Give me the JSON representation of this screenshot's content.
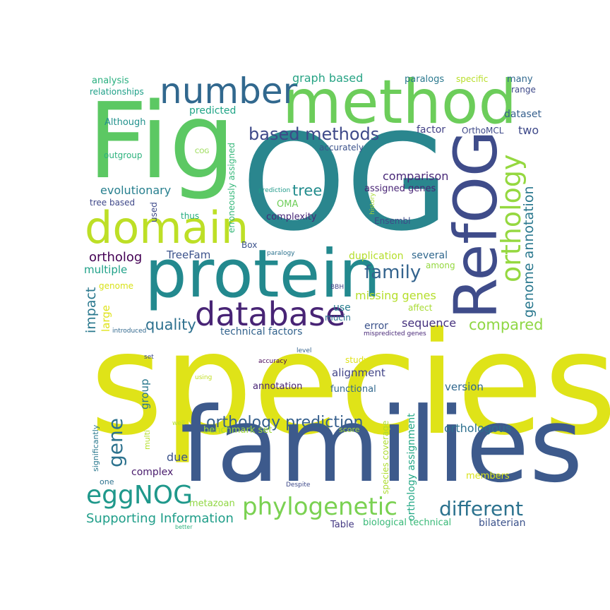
{
  "words": [
    {
      "text": "species",
      "color": "#dfe318"
    },
    {
      "text": "OG",
      "color": "#2a868e"
    },
    {
      "text": "families",
      "color": "#3d5a8c"
    },
    {
      "text": "Fig",
      "color": "#5cc863"
    },
    {
      "text": "protein",
      "color": "#23898e"
    },
    {
      "text": "method",
      "color": "#6ccd5a"
    },
    {
      "text": "RefOG",
      "color": "#3f4c8a"
    },
    {
      "text": "domain",
      "color": "#bddf26"
    },
    {
      "text": "number",
      "color": "#31688e"
    },
    {
      "text": "database",
      "color": "#482475"
    },
    {
      "text": "orthology",
      "color": "#95d840"
    },
    {
      "text": "phylogenetic",
      "color": "#7ad151"
    },
    {
      "text": "eggNOG",
      "color": "#1f988b"
    },
    {
      "text": "based methods",
      "color": "#3e4989"
    },
    {
      "text": "gene",
      "color": "#2c728e"
    },
    {
      "text": "family",
      "color": "#33638d"
    },
    {
      "text": "genome annotation",
      "color": "#2a788e"
    },
    {
      "text": "different",
      "color": "#2c728e"
    },
    {
      "text": "orthology prediction",
      "color": "#355f8d"
    },
    {
      "text": "compared",
      "color": "#8fd744"
    },
    {
      "text": "quality",
      "color": "#2d708e"
    },
    {
      "text": "Supporting Information",
      "color": "#1f9e89"
    },
    {
      "text": "tree",
      "color": "#228c8d"
    },
    {
      "text": "comparison",
      "color": "#482878"
    },
    {
      "text": "orthologous",
      "color": "#2d708e"
    },
    {
      "text": "missing genes",
      "color": "#b5de2b"
    },
    {
      "text": "impact",
      "color": "#2a788e"
    },
    {
      "text": "sequence",
      "color": "#46327e"
    },
    {
      "text": "ortholog",
      "color": "#440154"
    },
    {
      "text": "evolutionary",
      "color": "#277f8e"
    },
    {
      "text": "graph based",
      "color": "#26a384"
    },
    {
      "text": "predicted",
      "color": "#20a486"
    },
    {
      "text": "due",
      "color": "#3b528b"
    },
    {
      "text": "multiple",
      "color": "#1fa188"
    },
    {
      "text": "TreeFam",
      "color": "#3b528b"
    },
    {
      "text": "version",
      "color": "#31688e"
    },
    {
      "text": "alignment",
      "color": "#414487"
    },
    {
      "text": "two",
      "color": "#3e4989"
    },
    {
      "text": "factor",
      "color": "#424086"
    },
    {
      "text": "dataset",
      "color": "#355f8d"
    },
    {
      "text": "duplication",
      "color": "#b5de2b"
    },
    {
      "text": "several",
      "color": "#31688e"
    },
    {
      "text": "bilaterian",
      "color": "#3b528b"
    },
    {
      "text": "group",
      "color": "#2a788e"
    },
    {
      "text": "orthology assignment",
      "color": "#22a785"
    },
    {
      "text": "species coverage",
      "color": "#addc30"
    },
    {
      "text": "assigned genes",
      "color": "#482475"
    },
    {
      "text": "error",
      "color": "#3b528b"
    },
    {
      "text": "use",
      "color": "#287d8e"
    },
    {
      "text": "large",
      "color": "#dfe318"
    },
    {
      "text": "complex",
      "color": "#481a6c"
    },
    {
      "text": "technical factors",
      "color": "#33638d"
    },
    {
      "text": "benchmark set",
      "color": "#a0da39"
    },
    {
      "text": "annotation",
      "color": "#482475"
    },
    {
      "text": "functional",
      "color": "#31688e"
    },
    {
      "text": "biological technical",
      "color": "#38b977"
    },
    {
      "text": "Table",
      "color": "#443983"
    },
    {
      "text": "members",
      "color": "#d8e219"
    },
    {
      "text": "metazoan",
      "color": "#90d743"
    },
    {
      "text": "complexity",
      "color": "#482878"
    },
    {
      "text": "OMA",
      "color": "#6ece58"
    },
    {
      "text": "Ensembl",
      "color": "#3e4a89"
    },
    {
      "text": "accurately",
      "color": "#3b528b"
    },
    {
      "text": "analysis",
      "color": "#29af7f"
    },
    {
      "text": "relationships",
      "color": "#1fa088"
    },
    {
      "text": "paralogs",
      "color": "#2a788e"
    },
    {
      "text": "specific",
      "color": "#b8de29"
    },
    {
      "text": "many",
      "color": "#31688e"
    },
    {
      "text": "range",
      "color": "#3e4989"
    },
    {
      "text": "OrthoMCL",
      "color": "#3e4989"
    },
    {
      "text": "Although",
      "color": "#21918c"
    },
    {
      "text": "outgroup",
      "color": "#2db27d"
    },
    {
      "text": "COG",
      "color": "#8fd744"
    },
    {
      "text": "erroneously assigned",
      "color": "#35b779"
    },
    {
      "text": "tree based",
      "color": "#3f4889"
    },
    {
      "text": "used",
      "color": "#3e4989"
    },
    {
      "text": "thus",
      "color": "#27ad81"
    },
    {
      "text": "prediction",
      "color": "#1f9a8a"
    },
    {
      "text": "history",
      "color": "#a8db34"
    },
    {
      "text": "Box",
      "color": "#3b528b"
    },
    {
      "text": "paralogy",
      "color": "#2c728e"
    },
    {
      "text": "among",
      "color": "#95d840"
    },
    {
      "text": "genome",
      "color": "#d8e219"
    },
    {
      "text": "BBH",
      "color": "#414487"
    },
    {
      "text": "affect",
      "color": "#a8db34"
    },
    {
      "text": "mucin",
      "color": "#2a768e"
    },
    {
      "text": "introduced",
      "color": "#31688e"
    },
    {
      "text": "mispredicted genes",
      "color": "#482878"
    },
    {
      "text": "level",
      "color": "#33638d"
    },
    {
      "text": "set",
      "color": "#3e4989"
    },
    {
      "text": "accuracy",
      "color": "#440154"
    },
    {
      "text": "study",
      "color": "#dfe318"
    },
    {
      "text": "using",
      "color": "#c2df23"
    },
    {
      "text": "significantly",
      "color": "#2a788e"
    },
    {
      "text": "multi",
      "color": "#b5de2b"
    },
    {
      "text": "well",
      "color": "#b5de2b"
    },
    {
      "text": "score",
      "color": "#a5db36"
    },
    {
      "text": "one",
      "color": "#2c728e"
    },
    {
      "text": "Despite",
      "color": "#3e4989"
    },
    {
      "text": "better",
      "color": "#2db27d"
    }
  ]
}
